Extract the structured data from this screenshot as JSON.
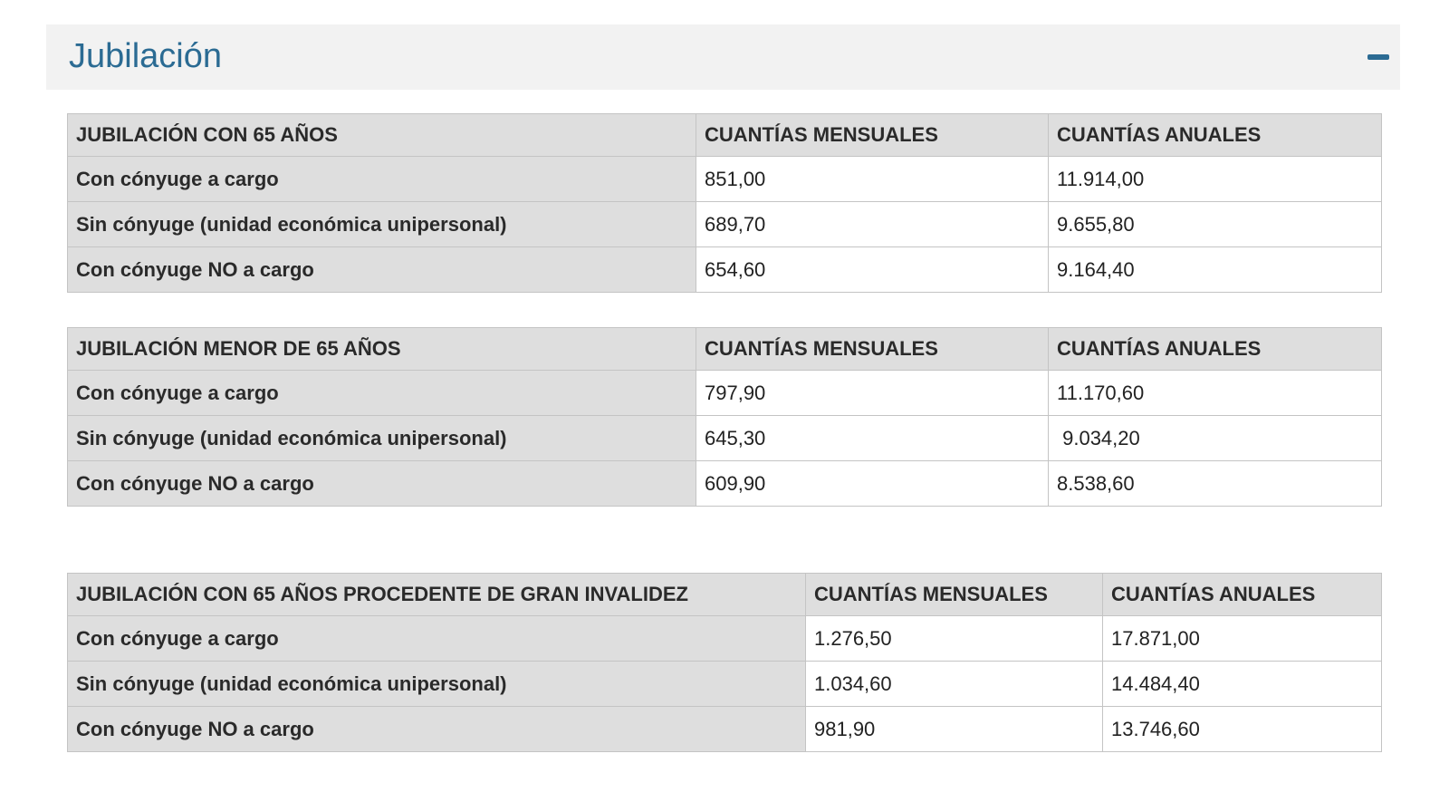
{
  "section": {
    "title": "Jubilación"
  },
  "tables": [
    {
      "headers": [
        "JUBILACIÓN CON 65 AÑOS",
        "CUANTÍAS MENSUALES",
        "CUANTÍAS ANUALES"
      ],
      "rows": [
        {
          "label": "Con cónyuge a cargo",
          "monthly": "851,00",
          "annual": "11.914,00"
        },
        {
          "label": "Sin cónyuge (unidad económica unipersonal)",
          "monthly": "689,70",
          "annual": "9.655,80"
        },
        {
          "label": "Con cónyuge NO a cargo",
          "monthly": "654,60",
          "annual": "9.164,40"
        }
      ]
    },
    {
      "headers": [
        "JUBILACIÓN MENOR DE 65 AÑOS",
        "CUANTÍAS MENSUALES",
        "CUANTÍAS ANUALES"
      ],
      "rows": [
        {
          "label": "Con cónyuge a cargo",
          "monthly": "797,90",
          "annual": "11.170,60"
        },
        {
          "label": "Sin cónyuge (unidad económica unipersonal)",
          "monthly": "645,30",
          "annual": " 9.034,20"
        },
        {
          "label": "Con cónyuge NO a cargo",
          "monthly": "609,90",
          "annual": "8.538,60"
        }
      ]
    },
    {
      "headers": [
        "JUBILACIÓN CON 65 AÑOS PROCEDENTE DE GRAN INVALIDEZ",
        "CUANTÍAS MENSUALES",
        "CUANTÍAS ANUALES"
      ],
      "rows": [
        {
          "label": "Con cónyuge a cargo",
          "monthly": "1.276,50",
          "annual": "17.871,00"
        },
        {
          "label": "Sin cónyuge (unidad económica unipersonal)",
          "monthly": "1.034,60",
          "annual": "14.484,40"
        },
        {
          "label": "Con cónyuge NO a cargo",
          "monthly": "981,90",
          "annual": "13.746,60"
        }
      ]
    }
  ]
}
